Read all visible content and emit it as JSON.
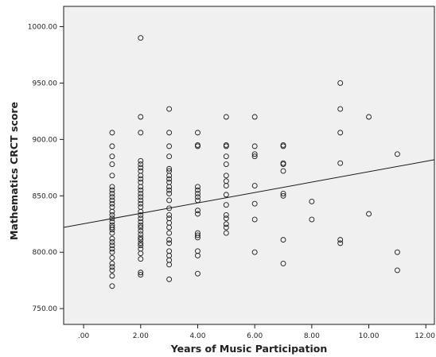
{
  "chart_data": {
    "type": "scatter",
    "title": "",
    "xlabel": "Years of Music Participation",
    "ylabel": "Mathematics CRCT score",
    "xlim": [
      -0.7,
      12.3
    ],
    "ylim": [
      736,
      1018
    ],
    "x_ticks": [
      0,
      2,
      4,
      6,
      8,
      10,
      12
    ],
    "x_tick_labels": [
      ".00",
      "2.00",
      "4.00",
      "6.00",
      "8.00",
      "10.00",
      "12.00"
    ],
    "y_ticks": [
      750,
      800,
      850,
      900,
      950,
      1000
    ],
    "y_tick_labels": [
      "750.00",
      "800.00",
      "850.00",
      "900.00",
      "950.00",
      "1000.00"
    ],
    "grid": false,
    "fit_line": {
      "x": [
        -0.7,
        12.3
      ],
      "y": [
        822,
        882
      ]
    },
    "series": [
      {
        "points": [
          [
            1,
            906
          ],
          [
            1,
            894
          ],
          [
            1,
            885
          ],
          [
            1,
            878
          ],
          [
            1,
            868
          ],
          [
            1,
            858
          ],
          [
            1,
            855
          ],
          [
            1,
            852
          ],
          [
            1,
            849
          ],
          [
            1,
            846
          ],
          [
            1,
            843
          ],
          [
            1,
            840
          ],
          [
            1,
            836
          ],
          [
            1,
            833
          ],
          [
            1,
            830
          ],
          [
            1,
            827
          ],
          [
            1,
            824
          ],
          [
            1,
            822
          ],
          [
            1,
            820
          ],
          [
            1,
            817
          ],
          [
            1,
            812
          ],
          [
            1,
            809
          ],
          [
            1,
            806
          ],
          [
            1,
            803
          ],
          [
            1,
            800
          ],
          [
            1,
            795
          ],
          [
            1,
            790
          ],
          [
            1,
            787
          ],
          [
            1,
            784
          ],
          [
            1,
            779
          ],
          [
            1,
            770
          ],
          [
            2,
            990
          ],
          [
            2,
            920
          ],
          [
            2,
            906
          ],
          [
            2,
            881
          ],
          [
            2,
            878
          ],
          [
            2,
            875
          ],
          [
            2,
            872
          ],
          [
            2,
            868
          ],
          [
            2,
            865
          ],
          [
            2,
            862
          ],
          [
            2,
            858
          ],
          [
            2,
            855
          ],
          [
            2,
            852
          ],
          [
            2,
            849
          ],
          [
            2,
            846
          ],
          [
            2,
            843
          ],
          [
            2,
            840
          ],
          [
            2,
            836
          ],
          [
            2,
            833
          ],
          [
            2,
            830
          ],
          [
            2,
            827
          ],
          [
            2,
            824
          ],
          [
            2,
            822
          ],
          [
            2,
            819
          ],
          [
            2,
            816
          ],
          [
            2,
            813
          ],
          [
            2,
            811
          ],
          [
            2,
            808
          ],
          [
            2,
            806
          ],
          [
            2,
            803
          ],
          [
            2,
            799
          ],
          [
            2,
            794
          ],
          [
            2,
            782
          ],
          [
            2,
            780
          ],
          [
            3,
            927
          ],
          [
            3,
            906
          ],
          [
            3,
            894
          ],
          [
            3,
            885
          ],
          [
            3,
            874
          ],
          [
            3,
            872
          ],
          [
            3,
            868
          ],
          [
            3,
            865
          ],
          [
            3,
            862
          ],
          [
            3,
            858
          ],
          [
            3,
            855
          ],
          [
            3,
            852
          ],
          [
            3,
            846
          ],
          [
            3,
            839
          ],
          [
            3,
            833
          ],
          [
            3,
            830
          ],
          [
            3,
            826
          ],
          [
            3,
            822
          ],
          [
            3,
            817
          ],
          [
            3,
            811
          ],
          [
            3,
            808
          ],
          [
            3,
            801
          ],
          [
            3,
            797
          ],
          [
            3,
            793
          ],
          [
            3,
            789
          ],
          [
            3,
            776
          ],
          [
            4,
            906
          ],
          [
            4,
            895
          ],
          [
            4,
            894
          ],
          [
            4,
            858
          ],
          [
            4,
            855
          ],
          [
            4,
            852
          ],
          [
            4,
            849
          ],
          [
            4,
            846
          ],
          [
            4,
            837
          ],
          [
            4,
            834
          ],
          [
            4,
            817
          ],
          [
            4,
            815
          ],
          [
            4,
            813
          ],
          [
            4,
            801
          ],
          [
            4,
            797
          ],
          [
            4,
            781
          ],
          [
            5,
            920
          ],
          [
            5,
            895
          ],
          [
            5,
            894
          ],
          [
            5,
            885
          ],
          [
            5,
            878
          ],
          [
            5,
            868
          ],
          [
            5,
            863
          ],
          [
            5,
            859
          ],
          [
            5,
            851
          ],
          [
            5,
            842
          ],
          [
            5,
            833
          ],
          [
            5,
            830
          ],
          [
            5,
            825
          ],
          [
            5,
            822
          ],
          [
            5,
            817
          ],
          [
            6,
            920
          ],
          [
            6,
            894
          ],
          [
            6,
            887
          ],
          [
            6,
            885
          ],
          [
            6,
            859
          ],
          [
            6,
            843
          ],
          [
            6,
            829
          ],
          [
            6,
            800
          ],
          [
            7,
            895
          ],
          [
            7,
            894
          ],
          [
            7,
            879
          ],
          [
            7,
            878
          ],
          [
            7,
            872
          ],
          [
            7,
            852
          ],
          [
            7,
            850
          ],
          [
            7,
            811
          ],
          [
            7,
            790
          ],
          [
            8,
            845
          ],
          [
            8,
            829
          ],
          [
            9,
            950
          ],
          [
            9,
            927
          ],
          [
            9,
            906
          ],
          [
            9,
            879
          ],
          [
            9,
            811
          ],
          [
            9,
            808
          ],
          [
            10,
            920
          ],
          [
            10,
            834
          ],
          [
            11,
            887
          ],
          [
            11,
            800
          ],
          [
            11,
            784
          ]
        ]
      }
    ]
  }
}
